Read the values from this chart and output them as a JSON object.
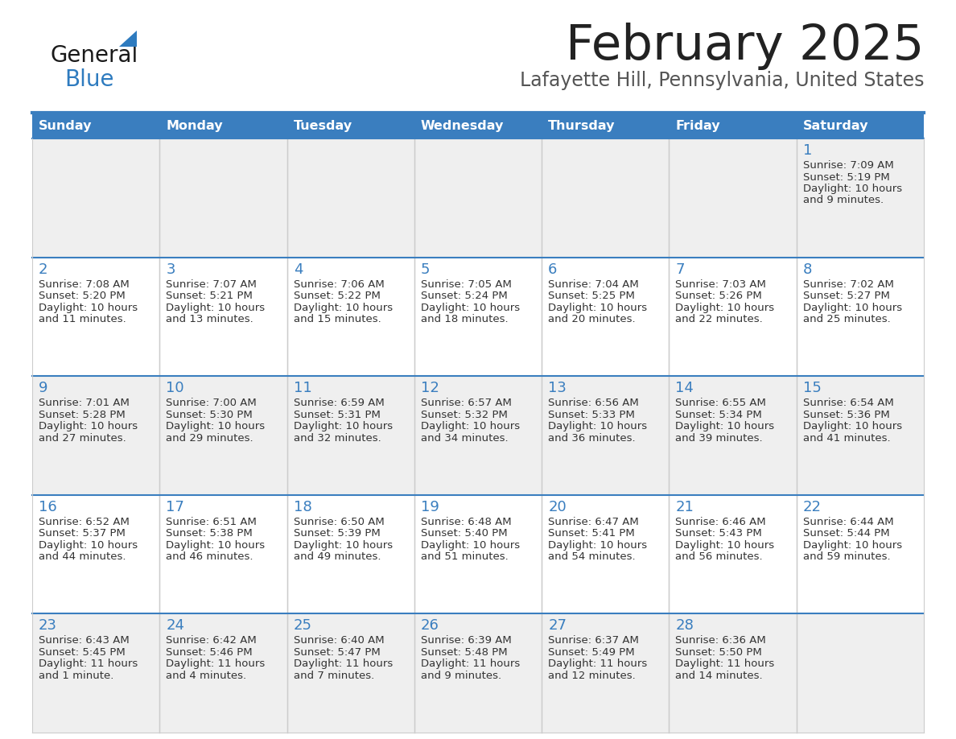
{
  "title": "February 2025",
  "subtitle": "Lafayette Hill, Pennsylvania, United States",
  "header_bg": "#3a7ebf",
  "header_text_color": "#ffffff",
  "cell_bg_odd": "#efefef",
  "cell_bg_even": "#ffffff",
  "day_names": [
    "Sunday",
    "Monday",
    "Tuesday",
    "Wednesday",
    "Thursday",
    "Friday",
    "Saturday"
  ],
  "title_color": "#222222",
  "subtitle_color": "#555555",
  "day_number_color": "#3a7ebf",
  "cell_text_color": "#333333",
  "divider_color": "#3a7ebf",
  "logo_general_color": "#1a1a1a",
  "logo_blue_color": "#2e7bbf",
  "weeks": [
    [
      {
        "day": 0,
        "info": null
      },
      {
        "day": 0,
        "info": null
      },
      {
        "day": 0,
        "info": null
      },
      {
        "day": 0,
        "info": null
      },
      {
        "day": 0,
        "info": null
      },
      {
        "day": 0,
        "info": null
      },
      {
        "day": 1,
        "info": {
          "sunrise": "7:09 AM",
          "sunset": "5:19 PM",
          "daylight_line1": "Daylight: 10 hours",
          "daylight_line2": "and 9 minutes."
        }
      }
    ],
    [
      {
        "day": 2,
        "info": {
          "sunrise": "7:08 AM",
          "sunset": "5:20 PM",
          "daylight_line1": "Daylight: 10 hours",
          "daylight_line2": "and 11 minutes."
        }
      },
      {
        "day": 3,
        "info": {
          "sunrise": "7:07 AM",
          "sunset": "5:21 PM",
          "daylight_line1": "Daylight: 10 hours",
          "daylight_line2": "and 13 minutes."
        }
      },
      {
        "day": 4,
        "info": {
          "sunrise": "7:06 AM",
          "sunset": "5:22 PM",
          "daylight_line1": "Daylight: 10 hours",
          "daylight_line2": "and 15 minutes."
        }
      },
      {
        "day": 5,
        "info": {
          "sunrise": "7:05 AM",
          "sunset": "5:24 PM",
          "daylight_line1": "Daylight: 10 hours",
          "daylight_line2": "and 18 minutes."
        }
      },
      {
        "day": 6,
        "info": {
          "sunrise": "7:04 AM",
          "sunset": "5:25 PM",
          "daylight_line1": "Daylight: 10 hours",
          "daylight_line2": "and 20 minutes."
        }
      },
      {
        "day": 7,
        "info": {
          "sunrise": "7:03 AM",
          "sunset": "5:26 PM",
          "daylight_line1": "Daylight: 10 hours",
          "daylight_line2": "and 22 minutes."
        }
      },
      {
        "day": 8,
        "info": {
          "sunrise": "7:02 AM",
          "sunset": "5:27 PM",
          "daylight_line1": "Daylight: 10 hours",
          "daylight_line2": "and 25 minutes."
        }
      }
    ],
    [
      {
        "day": 9,
        "info": {
          "sunrise": "7:01 AM",
          "sunset": "5:28 PM",
          "daylight_line1": "Daylight: 10 hours",
          "daylight_line2": "and 27 minutes."
        }
      },
      {
        "day": 10,
        "info": {
          "sunrise": "7:00 AM",
          "sunset": "5:30 PM",
          "daylight_line1": "Daylight: 10 hours",
          "daylight_line2": "and 29 minutes."
        }
      },
      {
        "day": 11,
        "info": {
          "sunrise": "6:59 AM",
          "sunset": "5:31 PM",
          "daylight_line1": "Daylight: 10 hours",
          "daylight_line2": "and 32 minutes."
        }
      },
      {
        "day": 12,
        "info": {
          "sunrise": "6:57 AM",
          "sunset": "5:32 PM",
          "daylight_line1": "Daylight: 10 hours",
          "daylight_line2": "and 34 minutes."
        }
      },
      {
        "day": 13,
        "info": {
          "sunrise": "6:56 AM",
          "sunset": "5:33 PM",
          "daylight_line1": "Daylight: 10 hours",
          "daylight_line2": "and 36 minutes."
        }
      },
      {
        "day": 14,
        "info": {
          "sunrise": "6:55 AM",
          "sunset": "5:34 PM",
          "daylight_line1": "Daylight: 10 hours",
          "daylight_line2": "and 39 minutes."
        }
      },
      {
        "day": 15,
        "info": {
          "sunrise": "6:54 AM",
          "sunset": "5:36 PM",
          "daylight_line1": "Daylight: 10 hours",
          "daylight_line2": "and 41 minutes."
        }
      }
    ],
    [
      {
        "day": 16,
        "info": {
          "sunrise": "6:52 AM",
          "sunset": "5:37 PM",
          "daylight_line1": "Daylight: 10 hours",
          "daylight_line2": "and 44 minutes."
        }
      },
      {
        "day": 17,
        "info": {
          "sunrise": "6:51 AM",
          "sunset": "5:38 PM",
          "daylight_line1": "Daylight: 10 hours",
          "daylight_line2": "and 46 minutes."
        }
      },
      {
        "day": 18,
        "info": {
          "sunrise": "6:50 AM",
          "sunset": "5:39 PM",
          "daylight_line1": "Daylight: 10 hours",
          "daylight_line2": "and 49 minutes."
        }
      },
      {
        "day": 19,
        "info": {
          "sunrise": "6:48 AM",
          "sunset": "5:40 PM",
          "daylight_line1": "Daylight: 10 hours",
          "daylight_line2": "and 51 minutes."
        }
      },
      {
        "day": 20,
        "info": {
          "sunrise": "6:47 AM",
          "sunset": "5:41 PM",
          "daylight_line1": "Daylight: 10 hours",
          "daylight_line2": "and 54 minutes."
        }
      },
      {
        "day": 21,
        "info": {
          "sunrise": "6:46 AM",
          "sunset": "5:43 PM",
          "daylight_line1": "Daylight: 10 hours",
          "daylight_line2": "and 56 minutes."
        }
      },
      {
        "day": 22,
        "info": {
          "sunrise": "6:44 AM",
          "sunset": "5:44 PM",
          "daylight_line1": "Daylight: 10 hours",
          "daylight_line2": "and 59 minutes."
        }
      }
    ],
    [
      {
        "day": 23,
        "info": {
          "sunrise": "6:43 AM",
          "sunset": "5:45 PM",
          "daylight_line1": "Daylight: 11 hours",
          "daylight_line2": "and 1 minute."
        }
      },
      {
        "day": 24,
        "info": {
          "sunrise": "6:42 AM",
          "sunset": "5:46 PM",
          "daylight_line1": "Daylight: 11 hours",
          "daylight_line2": "and 4 minutes."
        }
      },
      {
        "day": 25,
        "info": {
          "sunrise": "6:40 AM",
          "sunset": "5:47 PM",
          "daylight_line1": "Daylight: 11 hours",
          "daylight_line2": "and 7 minutes."
        }
      },
      {
        "day": 26,
        "info": {
          "sunrise": "6:39 AM",
          "sunset": "5:48 PM",
          "daylight_line1": "Daylight: 11 hours",
          "daylight_line2": "and 9 minutes."
        }
      },
      {
        "day": 27,
        "info": {
          "sunrise": "6:37 AM",
          "sunset": "5:49 PM",
          "daylight_line1": "Daylight: 11 hours",
          "daylight_line2": "and 12 minutes."
        }
      },
      {
        "day": 28,
        "info": {
          "sunrise": "6:36 AM",
          "sunset": "5:50 PM",
          "daylight_line1": "Daylight: 11 hours",
          "daylight_line2": "and 14 minutes."
        }
      },
      {
        "day": 0,
        "info": null
      }
    ]
  ]
}
